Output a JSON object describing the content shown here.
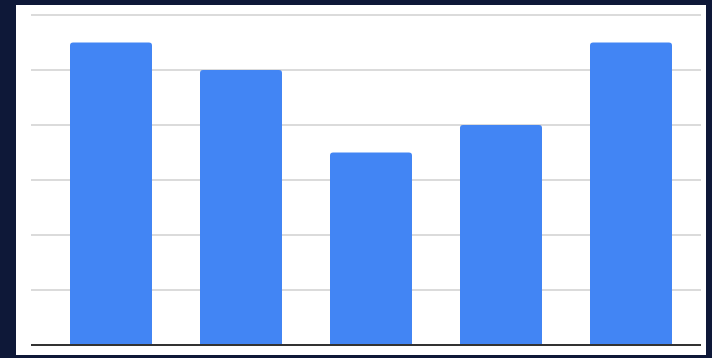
{
  "chart_data": {
    "type": "bar",
    "categories": [
      "",
      "",
      "",
      "",
      ""
    ],
    "values": [
      5.5,
      5.0,
      3.5,
      4.0,
      5.5
    ],
    "title": "",
    "xlabel": "",
    "ylabel": "",
    "ylim": [
      0,
      6
    ],
    "gridlines": true,
    "legend": "none"
  },
  "colors": {
    "bar": "#4285f4",
    "grid": "#cfcfcf",
    "axis": "#333333",
    "background": "#ffffff",
    "frame": "#0e1838"
  }
}
